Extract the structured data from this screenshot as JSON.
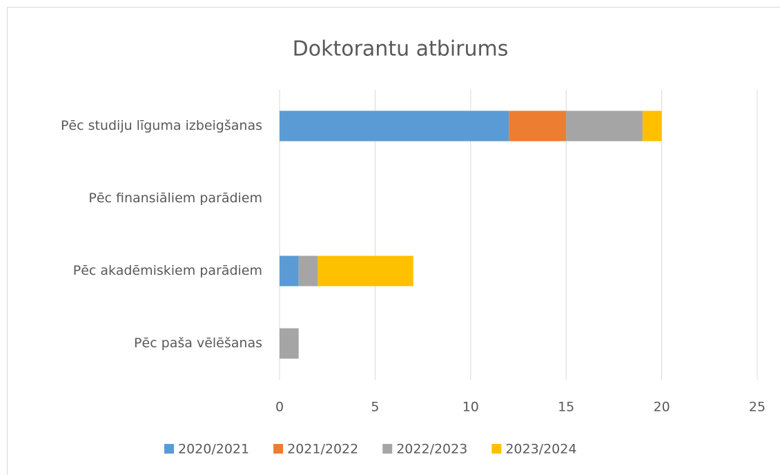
{
  "chart_data": {
    "type": "bar",
    "orientation": "horizontal",
    "stacked": true,
    "title": "Doktorantu atbirums",
    "categories": [
      "Pēc studiju līguma izbeigšanas",
      "Pēc finansiāliem parādiem",
      "Pēc akadēmiskiem parādiem",
      "Pēc paša vēlēšanas"
    ],
    "series": [
      {
        "name": "2020/2021",
        "color": "#5b9bd5",
        "values": [
          12,
          0,
          1,
          0
        ]
      },
      {
        "name": "2021/2022",
        "color": "#ed7d31",
        "values": [
          3,
          0,
          0,
          0
        ]
      },
      {
        "name": "2022/2023",
        "color": "#a5a5a5",
        "values": [
          4,
          0,
          1,
          1
        ]
      },
      {
        "name": "2023/2024",
        "color": "#ffc000",
        "values": [
          1,
          0,
          5,
          0
        ]
      }
    ],
    "xlim": [
      0,
      25
    ],
    "xticks": [
      0,
      5,
      10,
      15,
      20,
      25
    ],
    "grid": true,
    "legend": "bottom"
  }
}
